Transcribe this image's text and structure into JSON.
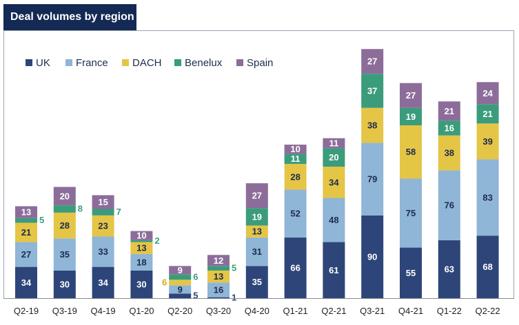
{
  "title": "Deal volumes by region",
  "colors": {
    "title_bg": "#142a55",
    "UK": "#2d4579",
    "France": "#8fb5d7",
    "DACH": "#e5c546",
    "Benelux": "#3b9c7c",
    "Spain": "#8c6d9a"
  },
  "chart_data": {
    "type": "bar",
    "stacked": true,
    "title": "Deal volumes by region",
    "legend_position": "top-left",
    "grid": false,
    "categories": [
      "Q2-19",
      "Q3-19",
      "Q4-19",
      "Q1-20",
      "Q2-20",
      "Q3-20",
      "Q4-20",
      "Q1-21",
      "Q2-21",
      "Q3-21",
      "Q4-21",
      "Q1-22",
      "Q2-22"
    ],
    "series": [
      {
        "name": "UK",
        "values": [
          34,
          30,
          34,
          30,
          5,
          1,
          35,
          66,
          61,
          90,
          55,
          63,
          68
        ]
      },
      {
        "name": "France",
        "values": [
          27,
          35,
          33,
          18,
          9,
          16,
          31,
          52,
          48,
          79,
          75,
          76,
          83
        ]
      },
      {
        "name": "DACH",
        "values": [
          21,
          28,
          23,
          13,
          6,
          13,
          13,
          28,
          34,
          38,
          58,
          38,
          39
        ]
      },
      {
        "name": "Benelux",
        "values": [
          5,
          8,
          7,
          2,
          6,
          5,
          19,
          11,
          20,
          37,
          19,
          16,
          21
        ]
      },
      {
        "name": "Spain",
        "values": [
          13,
          20,
          15,
          10,
          9,
          12,
          27,
          10,
          11,
          27,
          27,
          21,
          24
        ]
      }
    ]
  }
}
